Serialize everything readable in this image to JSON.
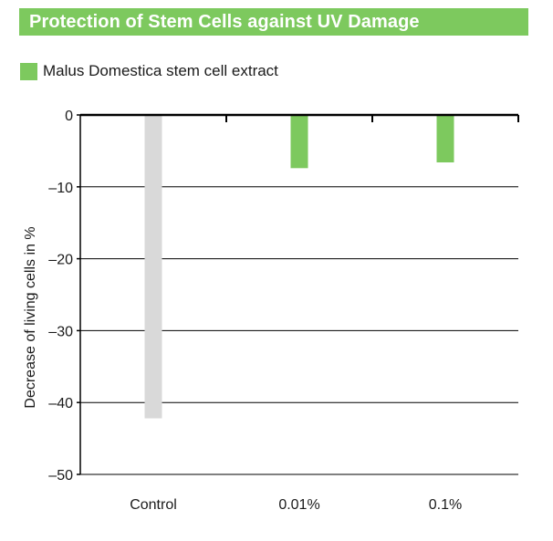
{
  "colors": {
    "accent": "#7dc95e",
    "control_bar": "#d9d9d9",
    "axis": "#000000",
    "grid": "#000000"
  },
  "chart_data": {
    "type": "bar",
    "title": "Protection of Stem Cells against UV Damage",
    "ylabel": "Decrease of living cells in %",
    "xlabel": "",
    "categories": [
      "Control",
      "0.01%",
      "0.1%"
    ],
    "values": [
      -42.2,
      -7.4,
      -6.6
    ],
    "bar_colors": [
      "#d9d9d9",
      "#7dc95e",
      "#7dc95e"
    ],
    "ylim": [
      -50,
      0
    ],
    "yticks": [
      0,
      -10,
      -20,
      -30,
      -40,
      -50
    ],
    "ytick_labels": [
      "0",
      "–10",
      "–20",
      "–30",
      "–40",
      "–50"
    ],
    "legend": [
      {
        "label": "Malus Domestica stem cell extract",
        "color": "#7dc95e"
      }
    ],
    "legend_position": "top-left",
    "grid": true
  }
}
